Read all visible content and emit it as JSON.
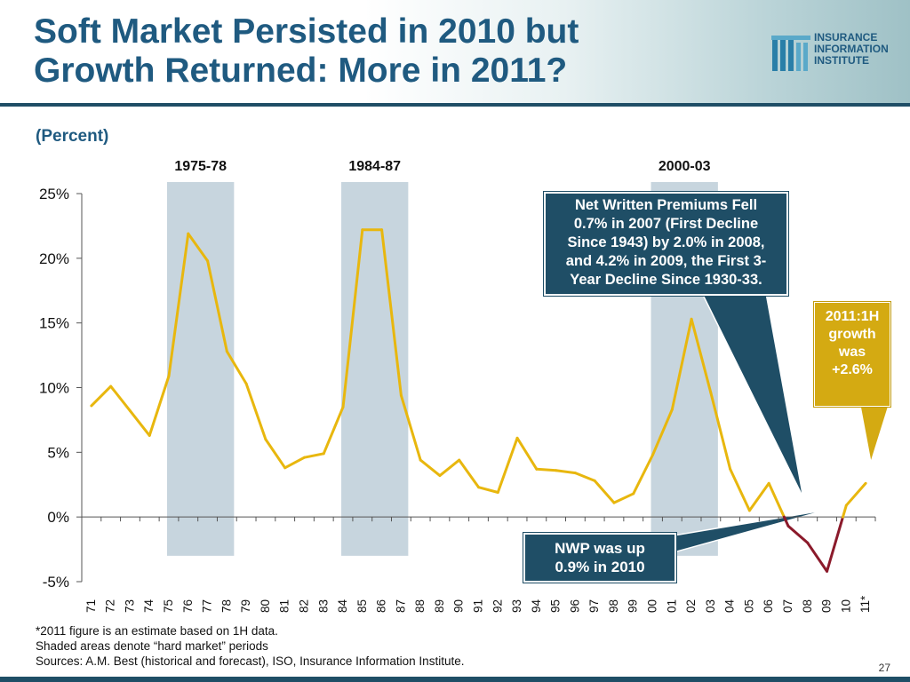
{
  "header": {
    "title_line1": "Soft Market Persisted in 2010 but",
    "title_line2": "Growth Returned: More in 2011?",
    "logo_line1": "INSURANCE",
    "logo_line2": "INFORMATION",
    "logo_line3": "INSTITUTE"
  },
  "subtitle": "(Percent)",
  "chart_data": {
    "type": "line",
    "categories": [
      "71",
      "72",
      "73",
      "74",
      "75",
      "76",
      "77",
      "78",
      "79",
      "80",
      "81",
      "82",
      "83",
      "84",
      "85",
      "86",
      "87",
      "88",
      "89",
      "90",
      "91",
      "92",
      "93",
      "94",
      "95",
      "96",
      "97",
      "98",
      "99",
      "00",
      "01",
      "02",
      "03",
      "04",
      "05",
      "06",
      "07",
      "08",
      "09",
      "10",
      "11*"
    ],
    "series": [
      {
        "values": [
          8.6,
          10.1,
          8.2,
          6.3,
          10.9,
          21.9,
          19.8,
          12.8,
          10.3,
          6.0,
          3.8,
          4.6,
          4.9,
          8.5,
          22.2,
          22.2,
          9.4,
          4.4,
          3.2,
          4.4,
          2.3,
          1.9,
          6.1,
          3.7,
          3.6,
          3.4,
          2.8,
          1.1,
          1.8,
          4.8,
          8.3,
          15.3,
          9.6,
          3.7,
          0.5,
          2.6,
          -0.7,
          -2.0,
          -4.2,
          0.9,
          2.6
        ],
        "color": "#e8b70e",
        "negative_color": "#8b1a2b"
      }
    ],
    "ylim": [
      -5,
      25
    ],
    "yticks": [
      -5,
      0,
      5,
      10,
      15,
      20,
      25
    ],
    "ytick_labels": [
      "-5%",
      "0%",
      "5%",
      "10%",
      "15%",
      "20%",
      "25%"
    ],
    "shaded_periods": [
      {
        "label": "1975-78",
        "start": "75",
        "end": "78"
      },
      {
        "label": "1984-87",
        "start": "84",
        "end": "87"
      },
      {
        "label": "2000-03",
        "start": "00",
        "end": "03"
      }
    ],
    "shade_color": "#c7d5de",
    "grid": false
  },
  "callouts": {
    "nwp_fell": [
      "Net Written Premiums Fell",
      "0.7% in 2007 (First Decline",
      "Since 1943) by 2.0% in 2008,",
      "and 4.2% in 2009, the First 3-",
      "Year Decline Since 1930-33."
    ],
    "growth_2011": [
      "2011:1H",
      "growth",
      "was",
      "+2.6%"
    ],
    "nwp_2010": [
      "NWP was up",
      "0.9% in 2010"
    ]
  },
  "footnotes": {
    "line1": "*2011 figure is an estimate based on 1H data.",
    "line2": "Shaded areas denote “hard market” periods",
    "line3": "Sources:  A.M. Best (historical and forecast), ISO, Insurance Information Institute."
  },
  "page_number": "27",
  "colors": {
    "title": "#1f5a80",
    "navy": "#1f4e66",
    "callout_gold": "#d4aa12"
  }
}
